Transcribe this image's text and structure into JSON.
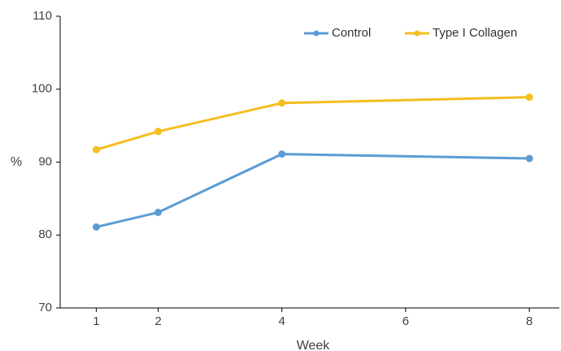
{
  "chart_data": {
    "type": "line",
    "title": "",
    "xlabel": "Week",
    "ylabel": "%",
    "x": [
      1,
      2,
      4,
      8
    ],
    "xlim": [
      0.5,
      9
    ],
    "x_ticks": [
      1,
      2,
      4,
      6,
      8
    ],
    "ylim": [
      70,
      110
    ],
    "y_ticks": [
      70,
      80,
      90,
      100,
      110
    ],
    "grid": false,
    "legend_position": "top-right",
    "series": [
      {
        "name": "Control",
        "color": "#5b9bd5",
        "values": [
          81.1,
          83.1,
          91.1,
          90.5
        ]
      },
      {
        "name": "Type I Collagen",
        "color": "#f5bd1f",
        "values": [
          91.7,
          94.2,
          98.1,
          98.9
        ]
      }
    ]
  }
}
